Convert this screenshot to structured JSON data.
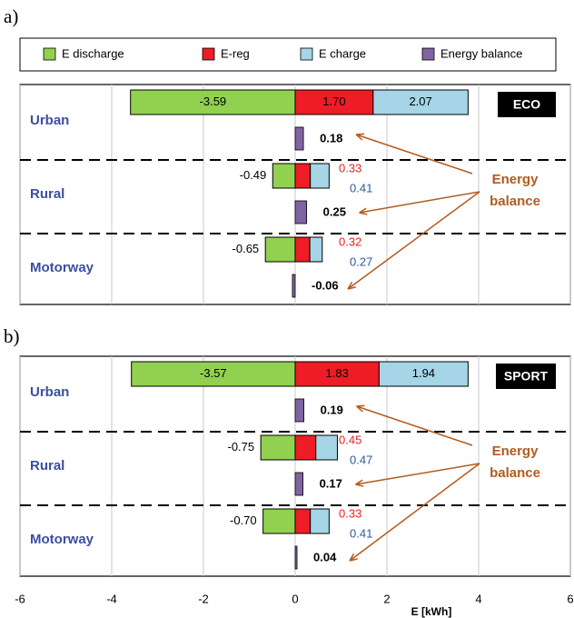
{
  "chart_data": [
    {
      "type": "hbar-stacked",
      "panel_label": "a)",
      "badge": "ECO",
      "categories": [
        "Urban",
        "Rural",
        "Motorway"
      ],
      "annotation": "Energy balance",
      "series": [
        {
          "name": "E discharge",
          "color": "#92d050",
          "values": [
            -3.59,
            -0.49,
            -0.65
          ],
          "value_labels": [
            "-3.59",
            "-0.49",
            "-0.65"
          ]
        },
        {
          "name": "E-reg",
          "color": "#ee1c25",
          "values": [
            1.7,
            0.33,
            0.32
          ],
          "value_labels": [
            "1.70",
            "0.33",
            "0.32"
          ]
        },
        {
          "name": "E charge",
          "color": "#a5d5e6",
          "values": [
            2.07,
            0.41,
            0.27
          ],
          "value_labels": [
            "2.07",
            "0.41",
            "0.27"
          ]
        },
        {
          "name": "Energy balance",
          "color": "#8064a2",
          "values": [
            0.18,
            0.25,
            -0.06
          ],
          "value_labels": [
            "0.18",
            "0.25",
            "-0.06"
          ]
        }
      ]
    },
    {
      "type": "hbar-stacked",
      "panel_label": "b)",
      "badge": "SPORT",
      "categories": [
        "Urban",
        "Rural",
        "Motorway"
      ],
      "annotation": "Energy balance",
      "series": [
        {
          "name": "E discharge",
          "color": "#92d050",
          "values": [
            -3.57,
            -0.75,
            -0.7
          ],
          "value_labels": [
            "-3.57",
            "-0.75",
            "-0.70"
          ]
        },
        {
          "name": "E-reg",
          "color": "#ee1c25",
          "values": [
            1.83,
            0.45,
            0.33
          ],
          "value_labels": [
            "1.83",
            "0.45",
            "0.33"
          ]
        },
        {
          "name": "E charge",
          "color": "#a5d5e6",
          "values": [
            1.94,
            0.47,
            0.41
          ],
          "value_labels": [
            "1.94",
            "0.47",
            "0.41"
          ]
        },
        {
          "name": "Energy balance",
          "color": "#8064a2",
          "values": [
            0.19,
            0.17,
            0.04
          ],
          "value_labels": [
            "0.19",
            "0.17",
            "0.04"
          ]
        }
      ],
      "xlim": [
        -6,
        6
      ],
      "xticks": [
        -6,
        -4,
        -2,
        0,
        2,
        4,
        6
      ],
      "xlabel": "E [kWh]",
      "grid": true
    }
  ]
}
